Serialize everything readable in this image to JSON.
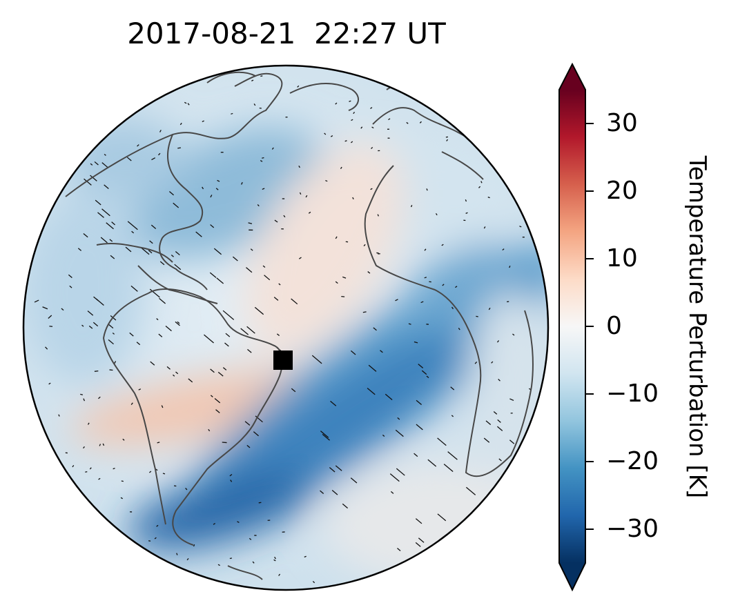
{
  "title": "2017-08-21  22:27 UT",
  "colorbar": {
    "label": "Temperature Perturbation [K]",
    "colormap": "RdBu_r",
    "range": [
      -35,
      35
    ],
    "extend": "both",
    "ticks": [
      {
        "value": 30,
        "label": "30"
      },
      {
        "value": 20,
        "label": "20"
      },
      {
        "value": 10,
        "label": "10"
      },
      {
        "value": 0,
        "label": "0"
      },
      {
        "value": -10,
        "label": "−10"
      },
      {
        "value": -20,
        "label": "−20"
      },
      {
        "value": -30,
        "label": "−30"
      }
    ],
    "colors": [
      "#053061",
      "#2166ac",
      "#4393c3",
      "#92c5de",
      "#d1e5f0",
      "#f7f7f7",
      "#fddbc7",
      "#f4a582",
      "#d6604d",
      "#b2182b",
      "#67001f"
    ]
  },
  "map": {
    "projection": "orthographic",
    "features": [
      "coastlines",
      "wind vectors",
      "temperature perturbation field"
    ],
    "marker": {
      "shape": "square",
      "color": "#000000",
      "location": "eclipse subsolar point near Brazil coast"
    },
    "coastline_color": "#444444"
  }
}
